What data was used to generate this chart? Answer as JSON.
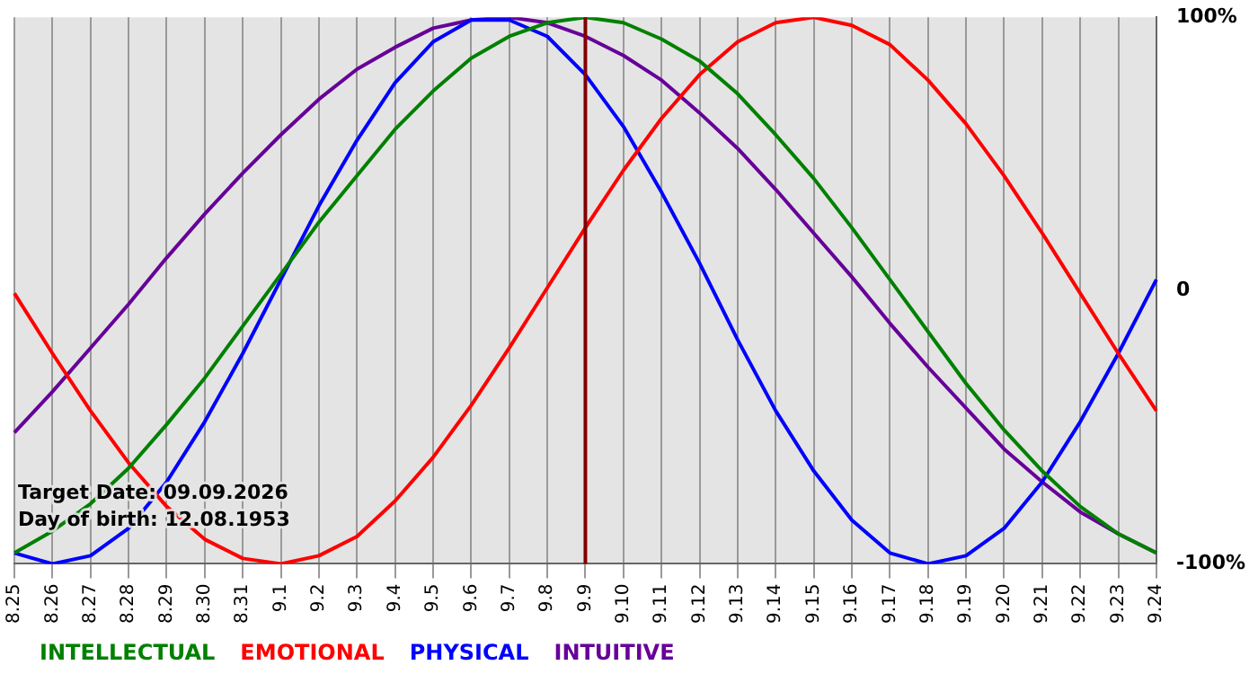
{
  "chart_data": {
    "type": "line",
    "categories": [
      "8.25",
      "8.26",
      "8.27",
      "8.28",
      "8.29",
      "8.30",
      "8.31",
      "9.1",
      "9.2",
      "9.3",
      "9.4",
      "9.5",
      "9.6",
      "9.7",
      "9.8",
      "9.9",
      "9.10",
      "9.11",
      "9.12",
      "9.13",
      "9.14",
      "9.15",
      "9.16",
      "9.17",
      "9.18",
      "9.19",
      "9.20",
      "9.21",
      "9.22",
      "9.23",
      "9.24"
    ],
    "series": [
      {
        "name": "INTELLECTUAL",
        "color": "#008000",
        "values": [
          -96,
          -88,
          -78,
          -65,
          -49,
          -32,
          -13,
          6,
          25,
          42,
          59,
          73,
          85,
          93,
          98,
          100,
          98,
          92,
          84,
          72,
          57,
          41,
          23,
          4,
          -15,
          -34,
          -51,
          -66,
          -79,
          -89,
          -96
        ]
      },
      {
        "name": "EMOTIONAL",
        "color": "#ff0000",
        "values": [
          -1,
          -23,
          -44,
          -63,
          -79,
          -91,
          -98,
          -100,
          -97,
          -90,
          -77,
          -61,
          -42,
          -21,
          1,
          23,
          44,
          63,
          79,
          91,
          98,
          100,
          97,
          90,
          77,
          61,
          42,
          21,
          -1,
          -23,
          -44
        ]
      },
      {
        "name": "PHYSICAL",
        "color": "#0000ff",
        "values": [
          -96,
          -100,
          -97,
          -87,
          -70,
          -48,
          -23,
          4,
          31,
          55,
          76,
          91,
          99,
          99,
          93,
          79,
          60,
          36,
          10,
          -18,
          -44,
          -66,
          -84,
          -96,
          -100,
          -97,
          -87,
          -70,
          -48,
          -23,
          4
        ]
      },
      {
        "name": "INTUITIVE",
        "color": "#660099",
        "values": [
          -52,
          -37,
          -21,
          -5,
          12,
          28,
          43,
          57,
          70,
          81,
          89,
          96,
          99,
          100,
          98,
          93,
          86,
          77,
          65,
          52,
          37,
          21,
          5,
          -12,
          -28,
          -43,
          -58,
          -70,
          -81,
          -89,
          -96
        ]
      }
    ],
    "ylim": [
      -100,
      100
    ],
    "yticks": [
      {
        "value": -100,
        "label": "-100%"
      },
      {
        "value": 0,
        "label": "0"
      },
      {
        "value": 100,
        "label": "100%"
      }
    ],
    "grid": "x",
    "legend": "bottom",
    "marker": "none",
    "line_style": "solid",
    "ref_lines": [
      {
        "axis": "x",
        "value": "9.9",
        "color": "#800000"
      }
    ],
    "annotations": [
      "Target Date: 09.09.2026",
      "Day of birth: 12.08.1953"
    ]
  }
}
